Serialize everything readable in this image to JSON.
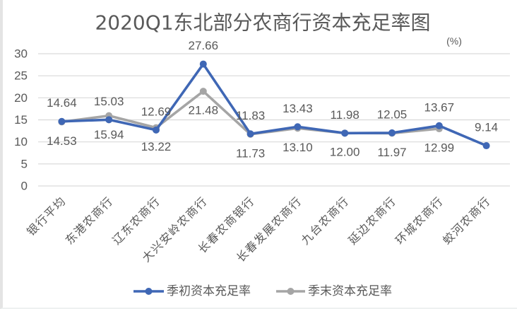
{
  "chart_data": {
    "type": "line",
    "title": "2020Q1东北部分农商行资本充足率图",
    "unit_label": "(%)",
    "xlabel": "",
    "ylabel": "(%)",
    "ylim": [
      0,
      30
    ],
    "yticks": [
      0,
      5,
      10,
      15,
      20,
      25,
      30
    ],
    "ytick_labels": [
      "0",
      "5",
      "10",
      "15",
      "20",
      "25",
      "30"
    ],
    "grid": true,
    "legend_position": "bottom",
    "categories": [
      "银行平均",
      "东港农商行",
      "辽东农商行",
      "大兴安岭农商行",
      "长春农商银行",
      "长春发展农商行",
      "九台农商行",
      "延边农商行",
      "环城农商行",
      "蛟河农商行"
    ],
    "series": [
      {
        "name": "季初资本充足率",
        "color": "#3f67b5",
        "label_position": "above",
        "values": [
          14.64,
          15.03,
          12.69,
          27.66,
          11.83,
          13.43,
          11.98,
          12.05,
          13.67,
          9.14
        ],
        "labels": [
          "14.64",
          "15.03",
          "12.69",
          "27.66",
          "11.83",
          "13.43",
          "11.98",
          "12.05",
          "13.67",
          "9.14"
        ]
      },
      {
        "name": "季末资本充足率",
        "color": "#a5a5a5",
        "label_position": "below",
        "values": [
          14.53,
          15.94,
          13.22,
          21.48,
          11.73,
          13.1,
          12.0,
          11.97,
          12.99,
          null
        ],
        "labels": [
          "14.53",
          "15.94",
          "13.22",
          "21.48",
          "11.73",
          "13.10",
          "12.00",
          "11.97",
          "12.99",
          null
        ]
      }
    ]
  }
}
